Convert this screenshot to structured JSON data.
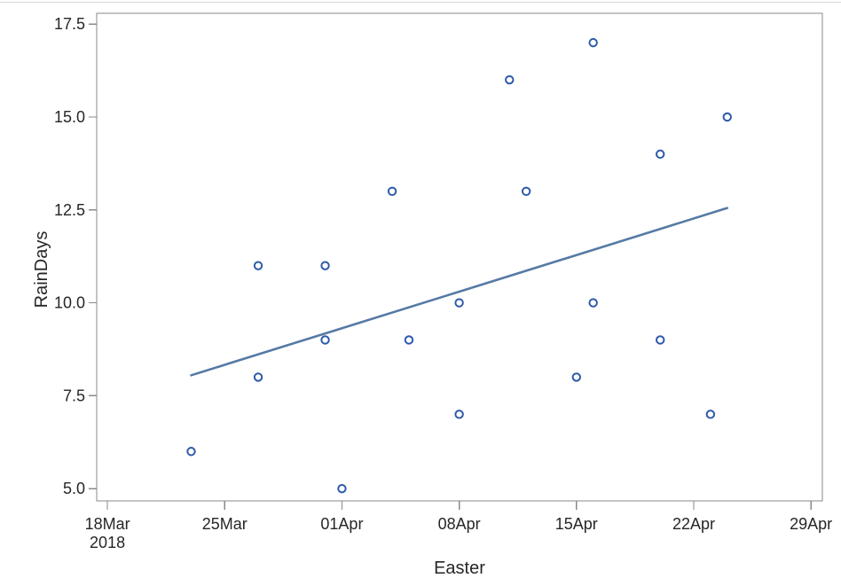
{
  "chart_data": {
    "type": "scatter",
    "title": "",
    "xlabel": "Easter",
    "ylabel": "RainDays",
    "x_axis": {
      "unit": "date",
      "year_sublabel": "2018",
      "range_days": [
        -0.64,
        42.68
      ],
      "ticks": [
        {
          "day": 0,
          "label": "18Mar",
          "sublabel": "2018"
        },
        {
          "day": 7,
          "label": "25Mar"
        },
        {
          "day": 14,
          "label": "01Apr"
        },
        {
          "day": 21,
          "label": "08Apr"
        },
        {
          "day": 28,
          "label": "15Apr"
        },
        {
          "day": 35,
          "label": "22Apr"
        },
        {
          "day": 42,
          "label": "29Apr"
        }
      ]
    },
    "y_axis": {
      "range": [
        4.67,
        17.79
      ],
      "ticks": [
        {
          "value": 5.0,
          "label": "5.0"
        },
        {
          "value": 7.5,
          "label": "7.5"
        },
        {
          "value": 10.0,
          "label": "10.0"
        },
        {
          "value": 12.5,
          "label": "12.5"
        },
        {
          "value": 15.0,
          "label": "15.0"
        },
        {
          "value": 17.5,
          "label": "17.5"
        }
      ]
    },
    "grid": false,
    "legend": "none",
    "points": [
      {
        "date": "23Mar",
        "day": 5,
        "rain_days": 6
      },
      {
        "date": "27Mar",
        "day": 9,
        "rain_days": 8
      },
      {
        "date": "27Mar",
        "day": 9,
        "rain_days": 11
      },
      {
        "date": "31Mar",
        "day": 13,
        "rain_days": 9
      },
      {
        "date": "31Mar",
        "day": 13,
        "rain_days": 11
      },
      {
        "date": "01Apr",
        "day": 14,
        "rain_days": 5
      },
      {
        "date": "04Apr",
        "day": 17,
        "rain_days": 13
      },
      {
        "date": "05Apr",
        "day": 18,
        "rain_days": 9
      },
      {
        "date": "08Apr",
        "day": 21,
        "rain_days": 7
      },
      {
        "date": "08Apr",
        "day": 21,
        "rain_days": 10
      },
      {
        "date": "11Apr",
        "day": 24,
        "rain_days": 16
      },
      {
        "date": "12Apr",
        "day": 25,
        "rain_days": 13
      },
      {
        "date": "15Apr",
        "day": 28,
        "rain_days": 8
      },
      {
        "date": "16Apr",
        "day": 29,
        "rain_days": 10
      },
      {
        "date": "16Apr",
        "day": 29,
        "rain_days": 17
      },
      {
        "date": "20Apr",
        "day": 33,
        "rain_days": 9
      },
      {
        "date": "20Apr",
        "day": 33,
        "rain_days": 14
      },
      {
        "date": "23Apr",
        "day": 36,
        "rain_days": 7
      },
      {
        "date": "24Apr",
        "day": 37,
        "rain_days": 15
      }
    ],
    "fit_line": {
      "start": {
        "day": 5,
        "value": 8.05
      },
      "end": {
        "day": 37,
        "value": 12.55
      }
    },
    "colors": {
      "marker": "#2d5aa9",
      "fit_line": "#567aa4",
      "frame": "#8a8a8a",
      "tick": "#8a8a8a",
      "text": "#262626",
      "background": "#ffffff",
      "top_divider": "#d6d6d6"
    }
  }
}
